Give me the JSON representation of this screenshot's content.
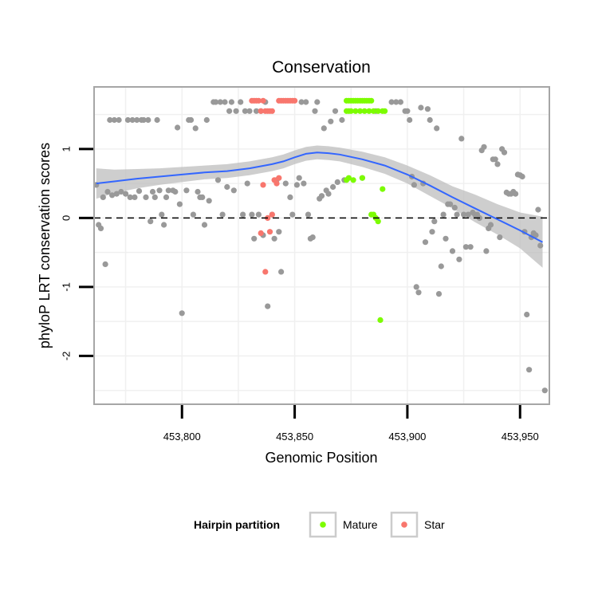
{
  "chart_data": {
    "type": "scatter",
    "title": "Conservation",
    "xlabel": "Genomic Position",
    "ylabel": "phyloP LRT conservation scores",
    "xlim": [
      453761,
      453963
    ],
    "ylim": [
      -2.7,
      1.9
    ],
    "x_ticks": [
      453800,
      453850,
      453900,
      453950
    ],
    "x_tick_labels": [
      "453,800",
      "453,850",
      "453,900",
      "453,950"
    ],
    "y_ticks": [
      -2,
      -1,
      0,
      1
    ],
    "y_tick_labels": [
      "-2",
      "-1",
      "0",
      "1"
    ],
    "reference_line": {
      "y": 0,
      "style": "dashed"
    },
    "legend": {
      "title": "Hairpin partition",
      "placement": "bottom",
      "entries": [
        {
          "label": "Mature",
          "color": "#7cfc00"
        },
        {
          "label": "Star",
          "color": "#f8766d"
        }
      ]
    },
    "colors": {
      "other": "#999999",
      "mature": "#7cfc00",
      "star": "#f8766d",
      "smooth": "#3366ff",
      "ribbon": "#bdbdbd",
      "panel_border": "#a6a6a6",
      "grid": "#f0f0f0"
    },
    "series": [
      {
        "name": "Other",
        "points": [
          [
            453762,
            0.48
          ],
          [
            453763,
            -0.1
          ],
          [
            453764,
            -0.15
          ],
          [
            453765,
            0.3
          ],
          [
            453766,
            -0.67
          ],
          [
            453767,
            0.38
          ],
          [
            453768,
            1.42
          ],
          [
            453769,
            0.33
          ],
          [
            453770,
            1.42
          ],
          [
            453771,
            0.35
          ],
          [
            453772,
            1.42
          ],
          [
            453773,
            0.38
          ],
          [
            453775,
            0.35
          ],
          [
            453776,
            1.42
          ],
          [
            453777,
            0.3
          ],
          [
            453778,
            1.42
          ],
          [
            453779,
            0.3
          ],
          [
            453780,
            1.42
          ],
          [
            453781,
            0.39
          ],
          [
            453782,
            1.42
          ],
          [
            453783,
            1.42
          ],
          [
            453784,
            0.3
          ],
          [
            453785,
            1.42
          ],
          [
            453786,
            -0.05
          ],
          [
            453787,
            0.38
          ],
          [
            453788,
            0.3
          ],
          [
            453789,
            1.42
          ],
          [
            453790,
            0.4
          ],
          [
            453791,
            0.05
          ],
          [
            453792,
            -0.1
          ],
          [
            453793,
            0.3
          ],
          [
            453794,
            0.4
          ],
          [
            453796,
            0.4
          ],
          [
            453797,
            0.38
          ],
          [
            453798,
            1.31
          ],
          [
            453799,
            0.2
          ],
          [
            453800,
            -1.38
          ],
          [
            453802,
            0.4
          ],
          [
            453803,
            1.42
          ],
          [
            453804,
            1.42
          ],
          [
            453805,
            0.05
          ],
          [
            453806,
            1.3
          ],
          [
            453807,
            0.38
          ],
          [
            453808,
            0.3
          ],
          [
            453809,
            0.3
          ],
          [
            453810,
            -0.1
          ],
          [
            453811,
            1.42
          ],
          [
            453812,
            0.25
          ],
          [
            453814,
            1.68
          ],
          [
            453815,
            1.68
          ],
          [
            453816,
            0.55
          ],
          [
            453817,
            1.68
          ],
          [
            453818,
            0.05
          ],
          [
            453819,
            1.68
          ],
          [
            453820,
            0.45
          ],
          [
            453821,
            1.55
          ],
          [
            453822,
            1.68
          ],
          [
            453823,
            0.4
          ],
          [
            453824,
            1.55
          ],
          [
            453826,
            1.68
          ],
          [
            453827,
            0.05
          ],
          [
            453828,
            1.55
          ],
          [
            453829,
            0.5
          ],
          [
            453830,
            1.55
          ],
          [
            453831,
            0.05
          ],
          [
            453832,
            -0.3
          ],
          [
            453833,
            1.55
          ],
          [
            453834,
            0.05
          ],
          [
            453835,
            1.55
          ],
          [
            453836,
            -0.25
          ],
          [
            453837,
            1.68
          ],
          [
            453838,
            -1.28
          ],
          [
            453840,
            0.05
          ],
          [
            453841,
            -0.3
          ],
          [
            453842,
            0.55
          ],
          [
            453843,
            -0.2
          ],
          [
            453844,
            -0.78
          ],
          [
            453846,
            0.5
          ],
          [
            453848,
            0.3
          ],
          [
            453849,
            0.05
          ],
          [
            453851,
            0.48
          ],
          [
            453852,
            0.58
          ],
          [
            453853,
            1.68
          ],
          [
            453854,
            0.5
          ],
          [
            453855,
            1.68
          ],
          [
            453856,
            0.05
          ],
          [
            453857,
            -0.3
          ],
          [
            453858,
            -0.28
          ],
          [
            453859,
            1.55
          ],
          [
            453860,
            1.68
          ],
          [
            453861,
            0.28
          ],
          [
            453862,
            0.32
          ],
          [
            453863,
            1.3
          ],
          [
            453864,
            0.4
          ],
          [
            453865,
            0.35
          ],
          [
            453866,
            1.4
          ],
          [
            453867,
            0.45
          ],
          [
            453868,
            1.55
          ],
          [
            453869,
            0.52
          ],
          [
            453871,
            1.42
          ],
          [
            453872,
            0.55
          ],
          [
            453880,
            0.58
          ],
          [
            453886,
            1.55
          ],
          [
            453893,
            1.68
          ],
          [
            453895,
            1.68
          ],
          [
            453897,
            1.68
          ],
          [
            453899,
            1.55
          ],
          [
            453900,
            1.55
          ],
          [
            453901,
            1.42
          ],
          [
            453902,
            0.6
          ],
          [
            453903,
            0.48
          ],
          [
            453904,
            -1.0
          ],
          [
            453905,
            -1.08
          ],
          [
            453906,
            1.6
          ],
          [
            453907,
            0.5
          ],
          [
            453908,
            -0.35
          ],
          [
            453909,
            1.58
          ],
          [
            453910,
            1.42
          ],
          [
            453911,
            -0.2
          ],
          [
            453912,
            -0.05
          ],
          [
            453913,
            1.3
          ],
          [
            453914,
            -1.1
          ],
          [
            453915,
            -0.7
          ],
          [
            453916,
            0.05
          ],
          [
            453917,
            -0.3
          ],
          [
            453918,
            0.2
          ],
          [
            453919,
            0.2
          ],
          [
            453920,
            -0.48
          ],
          [
            453921,
            0.15
          ],
          [
            453922,
            0.05
          ],
          [
            453923,
            -0.6
          ],
          [
            453924,
            1.15
          ],
          [
            453925,
            0.05
          ],
          [
            453926,
            -0.42
          ],
          [
            453927,
            0.05
          ],
          [
            453928,
            -0.42
          ],
          [
            453929,
            0.08
          ],
          [
            453930,
            0.05
          ],
          [
            453931,
            0.05
          ],
          [
            453932,
            0.0
          ],
          [
            453933,
            0.98
          ],
          [
            453934,
            1.03
          ],
          [
            453935,
            -0.48
          ],
          [
            453936,
            -0.15
          ],
          [
            453937,
            -0.1
          ],
          [
            453938,
            0.85
          ],
          [
            453939,
            0.85
          ],
          [
            453940,
            0.78
          ],
          [
            453941,
            -0.28
          ],
          [
            453942,
            1.0
          ],
          [
            453943,
            0.95
          ],
          [
            453944,
            0.37
          ],
          [
            453945,
            0.35
          ],
          [
            453946,
            0.35
          ],
          [
            453947,
            0.38
          ],
          [
            453948,
            0.35
          ],
          [
            453949,
            0.63
          ],
          [
            453950,
            0.62
          ],
          [
            453951,
            0.6
          ],
          [
            453952,
            -0.2
          ],
          [
            453953,
            -1.4
          ],
          [
            453954,
            -2.2
          ],
          [
            453955,
            -0.28
          ],
          [
            453956,
            -0.22
          ],
          [
            453957,
            -0.25
          ],
          [
            453958,
            0.12
          ],
          [
            453959,
            -0.4
          ],
          [
            453961,
            -2.5
          ]
        ]
      },
      {
        "name": "Star",
        "points": [
          [
            453831,
            1.7
          ],
          [
            453832,
            1.7
          ],
          [
            453833,
            1.7
          ],
          [
            453834,
            1.7
          ],
          [
            453835,
            1.55
          ],
          [
            453836,
            1.7
          ],
          [
            453837,
            1.55
          ],
          [
            453838,
            1.55
          ],
          [
            453839,
            1.55
          ],
          [
            453840,
            1.55
          ],
          [
            453843,
            1.7
          ],
          [
            453844,
            1.7
          ],
          [
            453845,
            1.7
          ],
          [
            453846,
            1.7
          ],
          [
            453847,
            1.7
          ],
          [
            453848,
            1.7
          ],
          [
            453849,
            1.7
          ],
          [
            453850,
            1.7
          ],
          [
            453835,
            -0.22
          ],
          [
            453836,
            0.48
          ],
          [
            453837,
            -0.78
          ],
          [
            453838,
            0.0
          ],
          [
            453839,
            -0.2
          ],
          [
            453840,
            0.05
          ],
          [
            453841,
            0.55
          ],
          [
            453842,
            0.5
          ],
          [
            453843,
            0.58
          ]
        ]
      },
      {
        "name": "Mature",
        "points": [
          [
            453873,
            1.7
          ],
          [
            453874,
            1.7
          ],
          [
            453875,
            1.7
          ],
          [
            453876,
            1.7
          ],
          [
            453877,
            1.7
          ],
          [
            453878,
            1.7
          ],
          [
            453879,
            1.7
          ],
          [
            453880,
            1.7
          ],
          [
            453881,
            1.7
          ],
          [
            453882,
            1.7
          ],
          [
            453883,
            1.7
          ],
          [
            453884,
            1.7
          ],
          [
            453873,
            1.55
          ],
          [
            453874,
            1.55
          ],
          [
            453875,
            1.55
          ],
          [
            453877,
            1.55
          ],
          [
            453879,
            1.55
          ],
          [
            453881,
            1.55
          ],
          [
            453883,
            1.55
          ],
          [
            453885,
            1.55
          ],
          [
            453887,
            1.55
          ],
          [
            453889,
            1.55
          ],
          [
            453890,
            1.55
          ],
          [
            453873,
            0.55
          ],
          [
            453874,
            0.58
          ],
          [
            453876,
            0.55
          ],
          [
            453880,
            0.58
          ],
          [
            453884,
            0.05
          ],
          [
            453885,
            0.05
          ],
          [
            453886,
            0.0
          ],
          [
            453887,
            -0.05
          ],
          [
            453888,
            -1.48
          ],
          [
            453889,
            0.42
          ]
        ]
      }
    ],
    "smooth_fit": {
      "method": "loess",
      "x": [
        453762,
        453770,
        453780,
        453790,
        453800,
        453810,
        453820,
        453830,
        453840,
        453845,
        453850,
        453855,
        453860,
        453865,
        453870,
        453880,
        453890,
        453900,
        453910,
        453920,
        453930,
        453940,
        453950,
        453960
      ],
      "y": [
        0.5,
        0.53,
        0.57,
        0.6,
        0.63,
        0.66,
        0.68,
        0.72,
        0.78,
        0.82,
        0.88,
        0.93,
        0.95,
        0.94,
        0.92,
        0.85,
        0.76,
        0.63,
        0.47,
        0.3,
        0.14,
        -0.02,
        -0.18,
        -0.35
      ],
      "ymin": [
        0.28,
        0.36,
        0.43,
        0.48,
        0.52,
        0.56,
        0.58,
        0.62,
        0.68,
        0.72,
        0.78,
        0.83,
        0.85,
        0.84,
        0.82,
        0.74,
        0.64,
        0.5,
        0.32,
        0.14,
        -0.06,
        -0.24,
        -0.44,
        -0.72
      ],
      "ymax": [
        0.72,
        0.7,
        0.71,
        0.72,
        0.74,
        0.76,
        0.78,
        0.82,
        0.88,
        0.92,
        0.98,
        1.03,
        1.05,
        1.04,
        1.02,
        0.96,
        0.88,
        0.76,
        0.62,
        0.46,
        0.34,
        0.2,
        0.08,
        0.02
      ]
    }
  }
}
